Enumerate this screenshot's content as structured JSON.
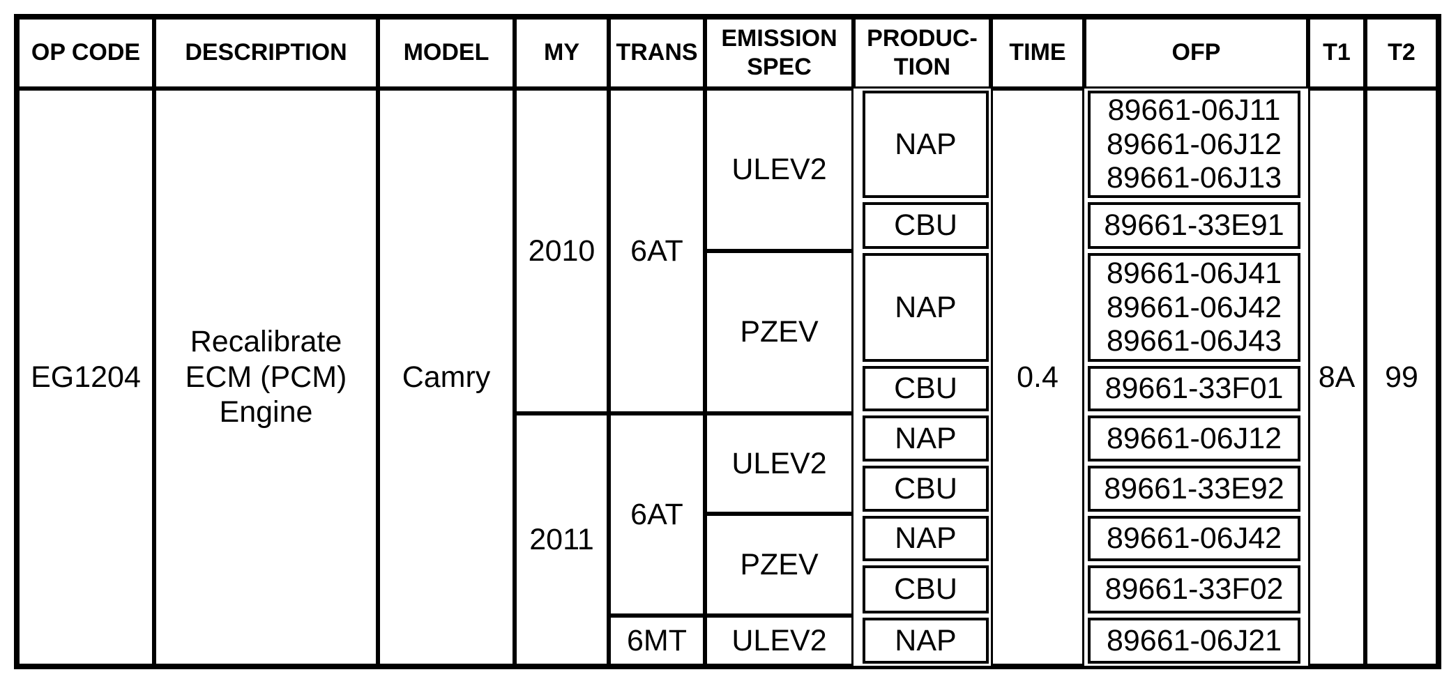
{
  "header": {
    "op_code": "OP CODE",
    "description": "DESCRIPTION",
    "model": "MODEL",
    "my": "MY",
    "trans": "TRANS",
    "emission_spec": "EMISSION\nSPEC",
    "production": "PRODUC-\nTION",
    "time": "TIME",
    "ofp": "OFP",
    "t1": "T1",
    "t2": "T2"
  },
  "body": {
    "op_code": "EG1204",
    "description": "Recalibrate\nECM (PCM)\nEngine",
    "model": "Camry",
    "time": "0.4",
    "t1": "8A",
    "t2": "99",
    "model_years": [
      {
        "year": "2010",
        "trans_groups": [
          {
            "trans": "6AT",
            "emissions": [
              {
                "spec": "ULEV2",
                "productions": [
                  {
                    "production": "NAP",
                    "ofp": "89661-06J11\n89661-06J12\n89661-06J13"
                  },
                  {
                    "production": "CBU",
                    "ofp": "89661-33E91"
                  }
                ]
              },
              {
                "spec": "PZEV",
                "productions": [
                  {
                    "production": "NAP",
                    "ofp": "89661-06J41\n89661-06J42\n89661-06J43"
                  },
                  {
                    "production": "CBU",
                    "ofp": "89661-33F01"
                  }
                ]
              }
            ]
          }
        ]
      },
      {
        "year": "2011",
        "trans_groups": [
          {
            "trans": "6AT",
            "emissions": [
              {
                "spec": "ULEV2",
                "productions": [
                  {
                    "production": "NAP",
                    "ofp": "89661-06J12"
                  },
                  {
                    "production": "CBU",
                    "ofp": "89661-33E92"
                  }
                ]
              },
              {
                "spec": "PZEV",
                "productions": [
                  {
                    "production": "NAP",
                    "ofp": "89661-06J42"
                  },
                  {
                    "production": "CBU",
                    "ofp": "89661-33F02"
                  }
                ]
              }
            ]
          },
          {
            "trans": "6MT",
            "emissions": [
              {
                "spec": "ULEV2",
                "productions": [
                  {
                    "production": "NAP",
                    "ofp": "89661-06J21"
                  }
                ]
              }
            ]
          }
        ]
      }
    ]
  }
}
